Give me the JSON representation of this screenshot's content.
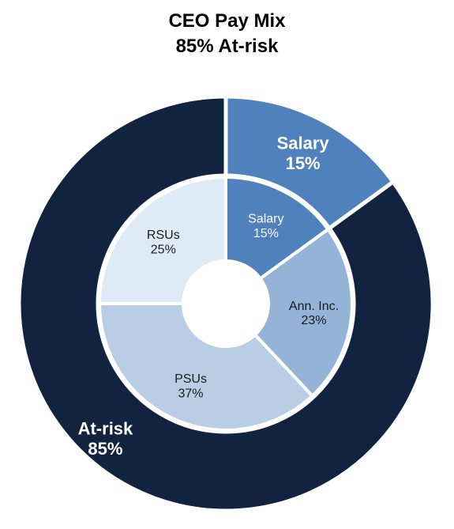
{
  "chart_data": {
    "type": "pie",
    "title": "CEO Pay Mix",
    "subtitle": "85% At-risk",
    "series": [
      {
        "ring": "outer",
        "slices": [
          {
            "label": "Salary",
            "value_label": "15%",
            "value": 15,
            "color": "#4f81bd"
          },
          {
            "label": "At-risk",
            "value_label": "85%",
            "value": 85,
            "color": "#12233f"
          }
        ]
      },
      {
        "ring": "inner",
        "slices": [
          {
            "label": "Salary",
            "value_label": "15%",
            "value": 15,
            "color": "#4f81bd"
          },
          {
            "label": "Ann. Inc.",
            "value_label": "23%",
            "value": 23,
            "color": "#95b3d7"
          },
          {
            "label": "PSUs",
            "value_label": "37%",
            "value": 37,
            "color": "#b9cde5"
          },
          {
            "label": "RSUs",
            "value_label": "25%",
            "value": 25,
            "color": "#deebf7"
          }
        ]
      }
    ]
  }
}
